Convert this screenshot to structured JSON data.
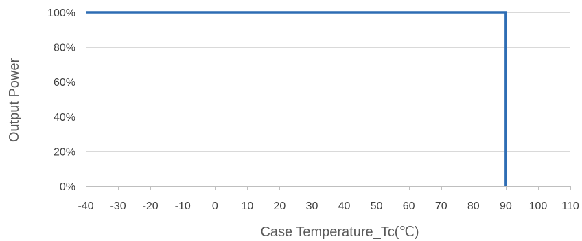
{
  "chart_data": {
    "type": "line",
    "title": "",
    "xlabel": "Case Temperature_Tc(℃)",
    "ylabel": "Output Power",
    "xlim": [
      -40,
      110
    ],
    "ylim": [
      0,
      100
    ],
    "x_ticks": [
      -40,
      -30,
      -20,
      -10,
      0,
      10,
      20,
      30,
      40,
      50,
      60,
      70,
      80,
      90,
      100,
      110
    ],
    "x_tick_labels": [
      "-40",
      "-30",
      "-20",
      "-10",
      "0",
      "10",
      "20",
      "30",
      "40",
      "50",
      "60",
      "70",
      "80",
      "90",
      "100",
      "110"
    ],
    "y_ticks": [
      0,
      20,
      40,
      60,
      80,
      100
    ],
    "y_tick_labels": [
      "0%",
      "20%",
      "40%",
      "60%",
      "80%",
      "100%"
    ],
    "grid": "horizontal",
    "legend": "none",
    "series": [
      {
        "color": "#2e6db4",
        "points": [
          {
            "x": -40,
            "y": 100
          },
          {
            "x": 90,
            "y": 100
          },
          {
            "x": 90,
            "y": 0
          }
        ]
      }
    ],
    "colors": {
      "grid": "#d9d9d9",
      "axis": "#bfbfbf",
      "line": "#2e6db4",
      "tick_text": "#404040",
      "title_text": "#595959"
    }
  }
}
